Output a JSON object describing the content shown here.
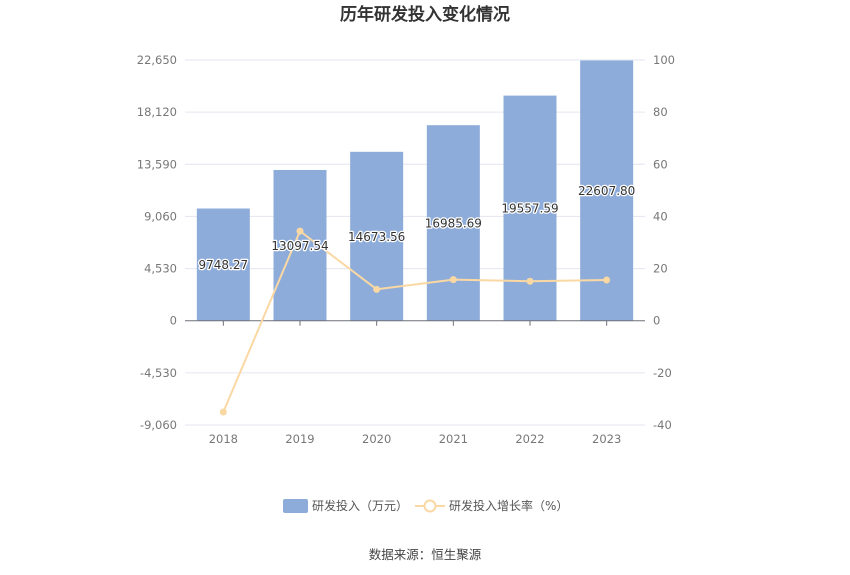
{
  "source_note": "数据来源：恒生聚源",
  "chart_data": {
    "type": "bar",
    "title": "历年研发投入变化情况",
    "categories": [
      "2018",
      "2019",
      "2020",
      "2021",
      "2022",
      "2023"
    ],
    "series": [
      {
        "name": "研发投入（万元）",
        "kind": "bar",
        "axis": "left",
        "values": [
          9748.27,
          13097.54,
          14673.56,
          16985.69,
          19557.59,
          22607.8
        ],
        "labels": [
          "9748.27",
          "13097.54",
          "14673.56",
          "16985.69",
          "19557.59",
          "22607.80"
        ],
        "color": "#8eacd9"
      },
      {
        "name": "研发投入增长率（%）",
        "kind": "line",
        "axis": "right",
        "values": [
          -35.0,
          34.36,
          12.03,
          15.76,
          15.14,
          15.6
        ],
        "color": "#fad8a4"
      }
    ],
    "y_left": {
      "min": -9060,
      "max": 22650,
      "ticks": [
        -9060,
        -4530,
        0,
        4530,
        9060,
        13590,
        18120,
        22650
      ],
      "tick_labels": [
        "-9,060",
        "-4,530",
        "0",
        "4,530",
        "9,060",
        "13,590",
        "18,120",
        "22,650"
      ]
    },
    "y_right": {
      "min": -40,
      "max": 100,
      "ticks": [
        -40,
        -20,
        0,
        20,
        40,
        60,
        80,
        100
      ],
      "tick_labels": [
        "-40",
        "-20",
        "0",
        "20",
        "40",
        "60",
        "80",
        "100"
      ]
    },
    "grid": true,
    "legend_position": "bottom-center"
  }
}
